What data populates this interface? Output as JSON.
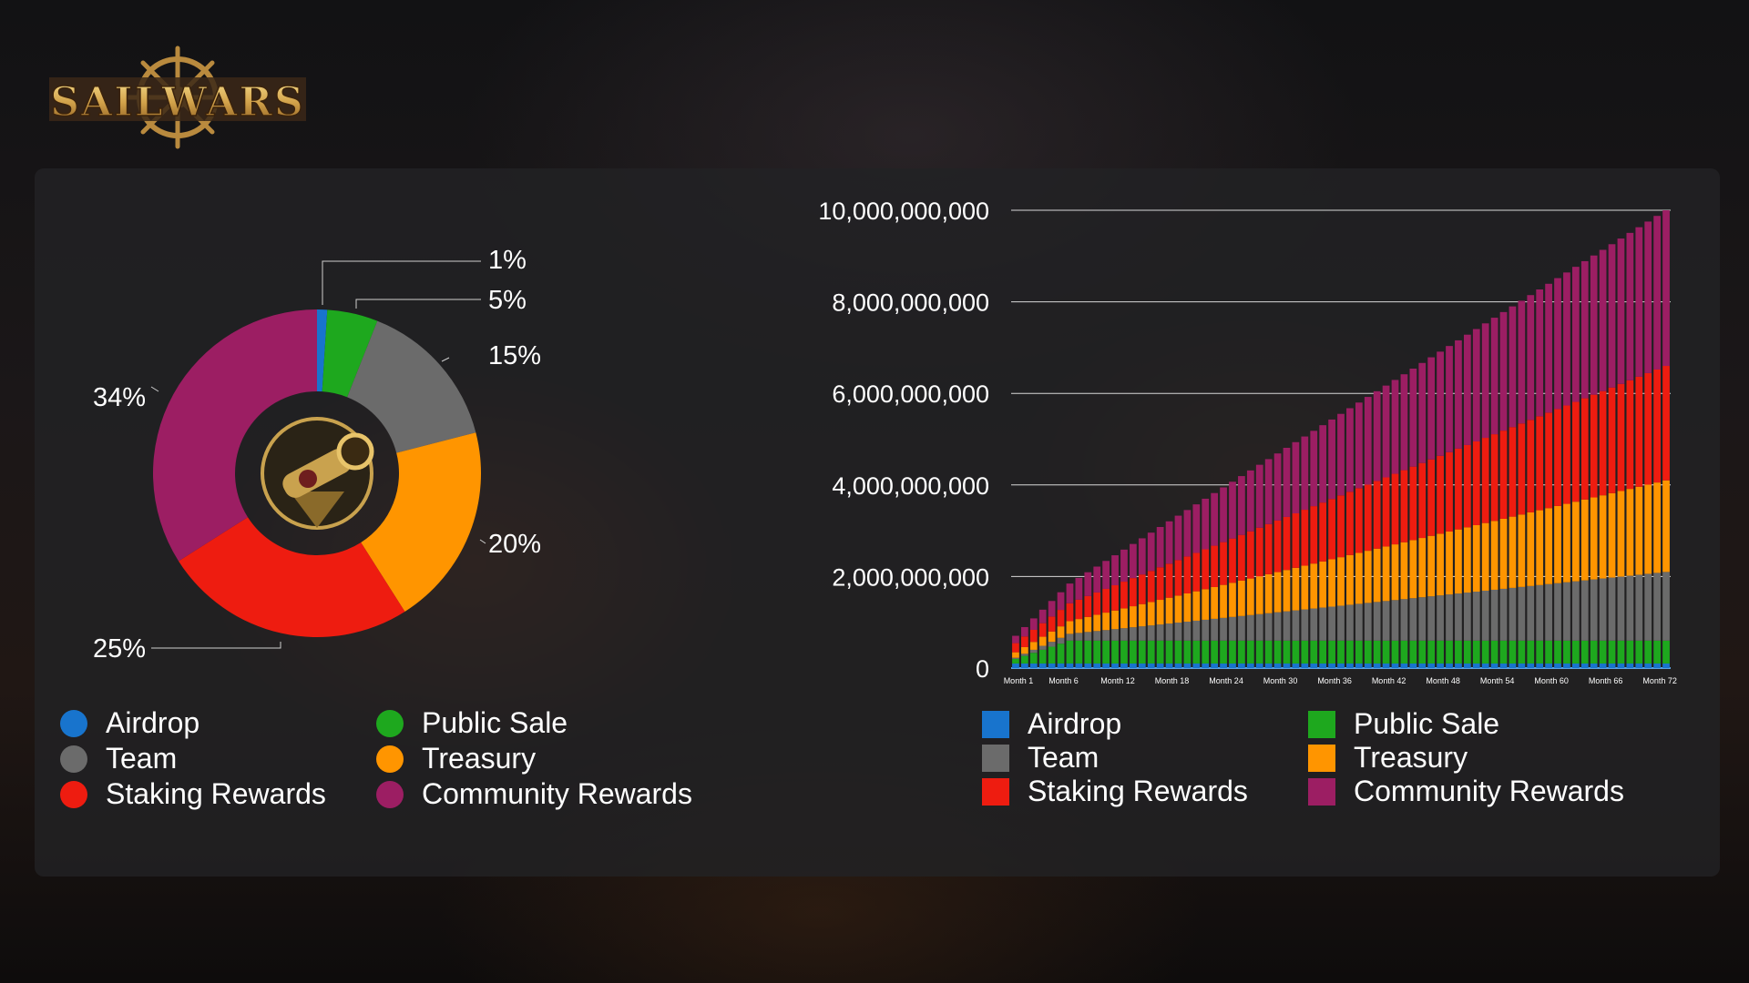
{
  "logo": {
    "text": "SAILWARS"
  },
  "colors": {
    "Airdrop": "#1874cd",
    "Public Sale": "#1ea81e",
    "Team": "#6b6b6b",
    "Treasury": "#ff9500",
    "Staking Rewards": "#ee1c10",
    "Community Rewards": "#9c1e63"
  },
  "pie_legend": [
    {
      "label": "Airdrop",
      "color": "#1874cd"
    },
    {
      "label": "Public Sale",
      "color": "#1ea81e"
    },
    {
      "label": "Team",
      "color": "#6b6b6b"
    },
    {
      "label": "Treasury",
      "color": "#ff9500"
    },
    {
      "label": "Staking Rewards",
      "color": "#ee1c10"
    },
    {
      "label": "Community Rewards",
      "color": "#9c1e63"
    }
  ],
  "bar_legend": [
    {
      "label": "Airdrop",
      "color": "#1874cd"
    },
    {
      "label": "Public Sale",
      "color": "#1ea81e"
    },
    {
      "label": "Team",
      "color": "#6b6b6b"
    },
    {
      "label": "Treasury",
      "color": "#ff9500"
    },
    {
      "label": "Staking Rewards",
      "color": "#ee1c10"
    },
    {
      "label": "Community Rewards",
      "color": "#9c1e63"
    }
  ],
  "chart_data": [
    {
      "type": "pie",
      "variant": "donut",
      "title": "",
      "slices": [
        {
          "name": "Airdrop",
          "value": 1,
          "label": "1%"
        },
        {
          "name": "Public Sale",
          "value": 5,
          "label": "5%"
        },
        {
          "name": "Team",
          "value": 15,
          "label": "15%"
        },
        {
          "name": "Treasury",
          "value": 20,
          "label": "20%"
        },
        {
          "name": "Staking Rewards",
          "value": 25,
          "label": "25%"
        },
        {
          "name": "Community Rewards",
          "value": 34,
          "label": "34%"
        }
      ],
      "legend": "bottom"
    },
    {
      "type": "bar",
      "stacked": true,
      "title": "",
      "xlabel": "",
      "ylabel": "",
      "x_tick_labels": [
        "Month 1",
        "Month 6",
        "Month 12",
        "Month 18",
        "Month 24",
        "Month 30",
        "Month 36",
        "Month 42",
        "Month 48",
        "Month 54",
        "Month 60",
        "Month 66",
        "Month 72"
      ],
      "y_ticks": [
        0,
        2000000000,
        4000000000,
        6000000000,
        8000000000,
        10000000000
      ],
      "y_tick_labels": [
        "0",
        "2,000,000,000",
        "4,000,000,000",
        "6,000,000,000",
        "8,000,000,000",
        "10,000,000,000"
      ],
      "ylim": [
        0,
        10000000000
      ],
      "grid": "horizontal",
      "legend": "bottom",
      "months": 73,
      "series": [
        {
          "name": "Airdrop",
          "total_at_month_72": 100000000,
          "unlock": "full from Month 1"
        },
        {
          "name": "Public Sale",
          "total_at_month_72": 500000000,
          "unlock": "ramps to full by Month 6"
        },
        {
          "name": "Team",
          "total_at_month_72": 1500000000,
          "unlock": "linear to Month 72"
        },
        {
          "name": "Treasury",
          "total_at_month_72": 2000000000,
          "unlock": "linear to Month 72"
        },
        {
          "name": "Staking Rewards",
          "total_at_month_72": 2500000000,
          "unlock": "linear to Month 72"
        },
        {
          "name": "Community Rewards",
          "total_at_month_72": 3400000000,
          "unlock": "linear to Month 72"
        }
      ],
      "values_at_month_1": [
        100000000,
        100000000,
        25000000,
        120000000,
        200000000,
        160000000
      ],
      "values_at_month_72": [
        100000000,
        500000000,
        1500000000,
        2000000000,
        2500000000,
        3400000000
      ]
    }
  ]
}
